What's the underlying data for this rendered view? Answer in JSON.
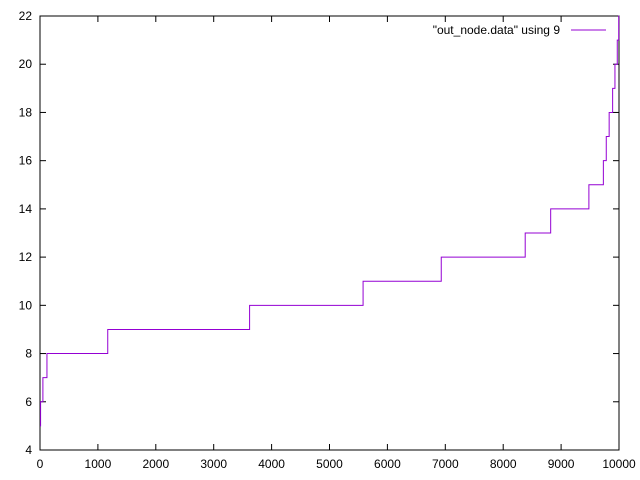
{
  "chart_data": {
    "type": "line",
    "title": "",
    "xlabel": "",
    "ylabel": "",
    "xlim": [
      0,
      10000
    ],
    "ylim": [
      4,
      22
    ],
    "x_ticks": [
      0,
      1000,
      2000,
      3000,
      4000,
      5000,
      6000,
      7000,
      8000,
      9000,
      10000
    ],
    "x_tick_labels": [
      "0",
      "1000",
      "2000",
      "3000",
      "4000",
      "5000",
      "6000",
      "7000",
      "8000",
      "9000",
      "10000"
    ],
    "y_ticks": [
      4,
      6,
      8,
      10,
      12,
      14,
      16,
      18,
      20,
      22
    ],
    "y_tick_labels": [
      "4",
      "6",
      "8",
      "10",
      "12",
      "14",
      "16",
      "18",
      "20",
      "22"
    ],
    "grid": false,
    "legend": {
      "position": "top-right",
      "entries": [
        "\"out_node.data\" using 9"
      ]
    },
    "series": [
      {
        "name": "\"out_node.data\" using 9",
        "color": "#9400d3",
        "step": "post",
        "points": [
          [
            0,
            5
          ],
          [
            10,
            6
          ],
          [
            50,
            7
          ],
          [
            120,
            8
          ],
          [
            1170,
            9
          ],
          [
            3620,
            10
          ],
          [
            5580,
            11
          ],
          [
            6930,
            12
          ],
          [
            8380,
            13
          ],
          [
            8820,
            14
          ],
          [
            9480,
            15
          ],
          [
            9730,
            16
          ],
          [
            9780,
            17
          ],
          [
            9830,
            18
          ],
          [
            9890,
            19
          ],
          [
            9930,
            20
          ],
          [
            9970,
            21
          ],
          [
            9995,
            22
          ],
          [
            10000,
            22
          ]
        ]
      }
    ]
  }
}
